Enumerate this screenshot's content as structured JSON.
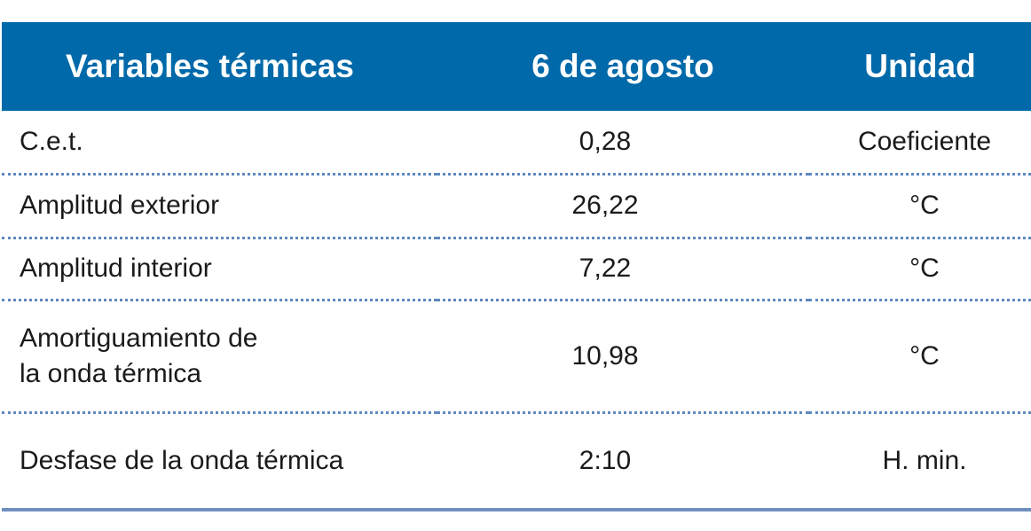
{
  "table": {
    "header": [
      "Variables térmicas",
      "6 de agosto",
      "Unidad"
    ],
    "rows": [
      [
        "C.e.t.",
        "0,28",
        "Coeficiente"
      ],
      [
        "Amplitud exterior",
        "26,22",
        "°C"
      ],
      [
        "Amplitud interior",
        "7,22",
        "°C"
      ],
      [
        [
          "Amortiguamiento de",
          "la onda térmica"
        ],
        "10,98",
        "°C"
      ],
      [
        "Desfase de la onda térmica",
        "2:10",
        "H. min."
      ]
    ]
  }
}
